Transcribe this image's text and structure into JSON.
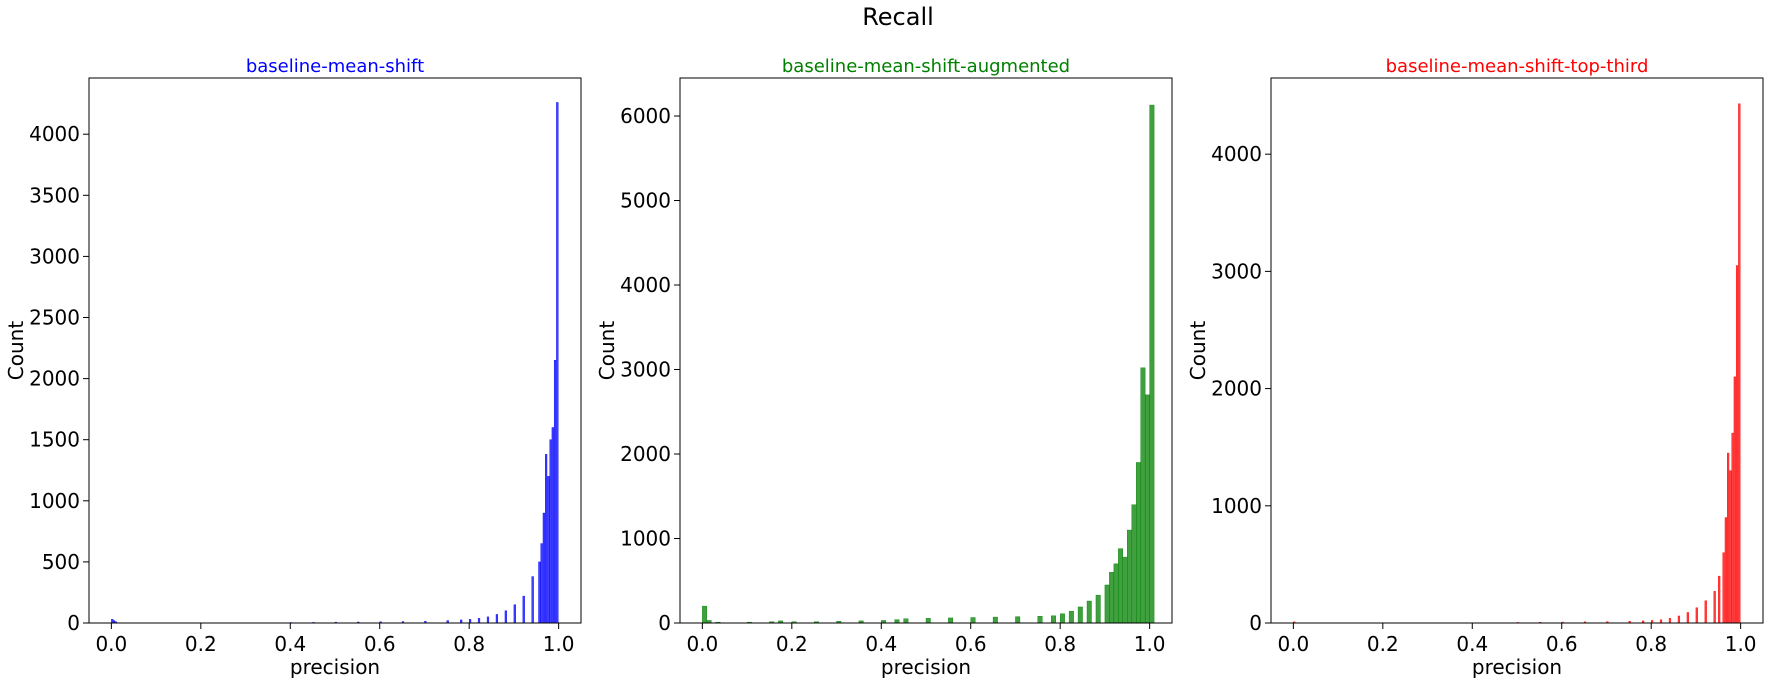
{
  "figure": {
    "suptitle": "Recall"
  },
  "chart_data": [
    {
      "type": "bar",
      "title": "baseline-mean-shift",
      "title_color": "#0000ff",
      "color": "#0000ff",
      "xlabel": "precision",
      "ylabel": "Count",
      "xlim": [
        -0.05,
        1.05
      ],
      "ylim": [
        0,
        4460
      ],
      "xticks": [
        "0.0",
        "0.2",
        "0.4",
        "0.6",
        "0.8",
        "1.0"
      ],
      "yticks": [
        "0",
        "500",
        "1000",
        "1500",
        "2000",
        "2500",
        "3000",
        "3500",
        "4000"
      ],
      "grid": false,
      "bin_width": 0.004,
      "bins": [
        [
          0.0,
          30
        ],
        [
          0.004,
          20
        ],
        [
          0.008,
          10
        ],
        [
          0.4,
          4
        ],
        [
          0.45,
          5
        ],
        [
          0.5,
          7
        ],
        [
          0.55,
          8
        ],
        [
          0.6,
          10
        ],
        [
          0.65,
          12
        ],
        [
          0.7,
          15
        ],
        [
          0.75,
          20
        ],
        [
          0.78,
          25
        ],
        [
          0.8,
          30
        ],
        [
          0.82,
          38
        ],
        [
          0.84,
          50
        ],
        [
          0.86,
          70
        ],
        [
          0.88,
          100
        ],
        [
          0.9,
          150
        ],
        [
          0.92,
          220
        ],
        [
          0.94,
          380
        ],
        [
          0.955,
          500
        ],
        [
          0.96,
          650
        ],
        [
          0.965,
          900
        ],
        [
          0.97,
          1380
        ],
        [
          0.975,
          1200
        ],
        [
          0.98,
          1500
        ],
        [
          0.985,
          1600
        ],
        [
          0.99,
          2150
        ],
        [
          0.995,
          4260
        ]
      ]
    },
    {
      "type": "bar",
      "title": "baseline-mean-shift-augmented",
      "title_color": "#008000",
      "color": "#008000",
      "xlabel": "precision",
      "ylabel": "Count",
      "xlim": [
        -0.05,
        1.05
      ],
      "ylim": [
        0,
        6450
      ],
      "xticks": [
        "0.0",
        "0.2",
        "0.4",
        "0.6",
        "0.8",
        "1.0"
      ],
      "yticks": [
        "0",
        "1000",
        "2000",
        "3000",
        "4000",
        "5000",
        "6000"
      ],
      "grid": false,
      "bin_width": 0.01,
      "bins": [
        [
          0.0,
          200
        ],
        [
          0.01,
          30
        ],
        [
          0.03,
          10
        ],
        [
          0.1,
          10
        ],
        [
          0.15,
          15
        ],
        [
          0.17,
          25
        ],
        [
          0.2,
          15
        ],
        [
          0.25,
          15
        ],
        [
          0.3,
          20
        ],
        [
          0.35,
          25
        ],
        [
          0.4,
          30
        ],
        [
          0.43,
          40
        ],
        [
          0.45,
          50
        ],
        [
          0.5,
          55
        ],
        [
          0.55,
          60
        ],
        [
          0.6,
          65
        ],
        [
          0.65,
          70
        ],
        [
          0.7,
          75
        ],
        [
          0.75,
          80
        ],
        [
          0.78,
          85
        ],
        [
          0.8,
          110
        ],
        [
          0.82,
          140
        ],
        [
          0.84,
          190
        ],
        [
          0.86,
          260
        ],
        [
          0.88,
          330
        ],
        [
          0.9,
          450
        ],
        [
          0.91,
          600
        ],
        [
          0.92,
          700
        ],
        [
          0.93,
          880
        ],
        [
          0.94,
          780
        ],
        [
          0.95,
          1100
        ],
        [
          0.96,
          1400
        ],
        [
          0.97,
          1900
        ],
        [
          0.98,
          3020
        ],
        [
          0.99,
          2700
        ],
        [
          1.0,
          6130
        ]
      ]
    },
    {
      "type": "bar",
      "title": "baseline-mean-shift-top-third",
      "title_color": "#ff0000",
      "color": "#ff0000",
      "xlabel": "precision",
      "ylabel": "Count",
      "xlim": [
        -0.05,
        1.05
      ],
      "ylim": [
        0,
        4650
      ],
      "xticks": [
        "0.0",
        "0.2",
        "0.4",
        "0.6",
        "0.8",
        "1.0"
      ],
      "yticks": [
        "0",
        "1000",
        "2000",
        "3000",
        "4000"
      ],
      "grid": false,
      "bin_width": 0.004,
      "bins": [
        [
          0.0,
          10
        ],
        [
          0.5,
          5
        ],
        [
          0.55,
          6
        ],
        [
          0.6,
          8
        ],
        [
          0.65,
          10
        ],
        [
          0.7,
          12
        ],
        [
          0.75,
          15
        ],
        [
          0.78,
          18
        ],
        [
          0.8,
          22
        ],
        [
          0.82,
          28
        ],
        [
          0.84,
          40
        ],
        [
          0.86,
          60
        ],
        [
          0.88,
          90
        ],
        [
          0.9,
          130
        ],
        [
          0.92,
          190
        ],
        [
          0.94,
          270
        ],
        [
          0.95,
          400
        ],
        [
          0.96,
          600
        ],
        [
          0.965,
          900
        ],
        [
          0.97,
          1450
        ],
        [
          0.975,
          1300
        ],
        [
          0.98,
          1620
        ],
        [
          0.985,
          2100
        ],
        [
          0.99,
          3050
        ],
        [
          0.995,
          4430
        ]
      ]
    }
  ]
}
